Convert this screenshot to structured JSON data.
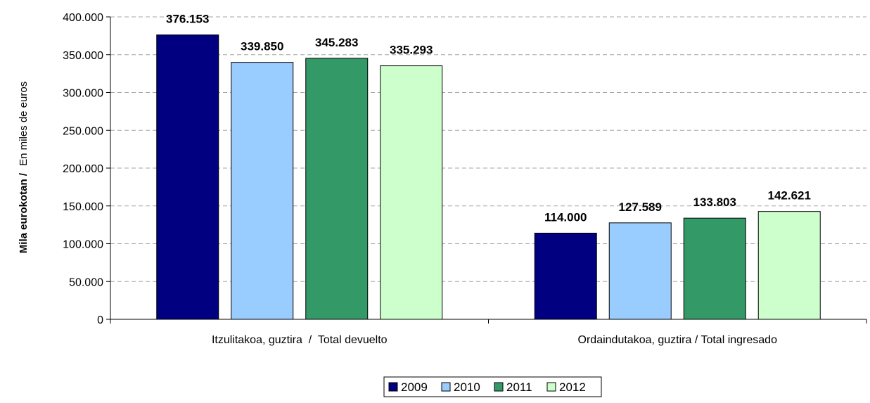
{
  "chart_data": {
    "type": "bar",
    "title": "",
    "ylabel_bold": "Mila eurokotan /",
    "ylabel_regular": "En miles de euros",
    "xlabel": "",
    "categories": [
      "Itzulitakoa, guztira  /  Total devuelto",
      "Ordaindutakoa, guztira / Total ingresado"
    ],
    "series": [
      {
        "name": "2009",
        "values": [
          376153,
          114000
        ],
        "labels": [
          "376.153",
          "114.000"
        ],
        "color": "#000080"
      },
      {
        "name": "2010",
        "values": [
          339850,
          127589
        ],
        "labels": [
          "339.850",
          "127.589"
        ],
        "color": "#99CCFF"
      },
      {
        "name": "2011",
        "values": [
          345283,
          133803
        ],
        "labels": [
          "345.283",
          "133.803"
        ],
        "color": "#339966"
      },
      {
        "name": "2012",
        "values": [
          335293,
          142621
        ],
        "labels": [
          "335.293",
          "142.621"
        ],
        "color": "#CCFFCC"
      }
    ],
    "ylim": [
      0,
      400000
    ],
    "yticks": [
      0,
      50000,
      100000,
      150000,
      200000,
      250000,
      300000,
      350000,
      400000
    ],
    "ytick_labels": [
      "0",
      "50.000",
      "100.000",
      "150.000",
      "200.000",
      "250.000",
      "300.000",
      "350.000",
      "400.000"
    ],
    "grid": true,
    "legend_position": "bottom-center"
  }
}
